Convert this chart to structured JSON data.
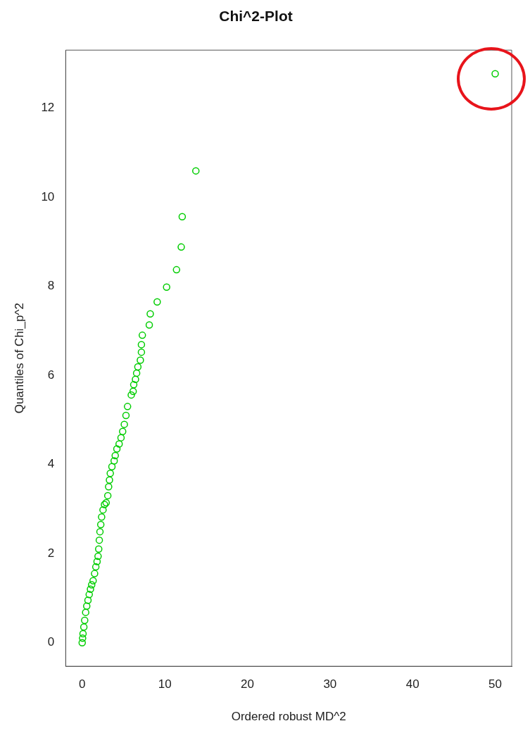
{
  "chart_data": {
    "type": "scatter",
    "title": "Chi^2-Plot",
    "xlabel": "Ordered robust MD^2",
    "ylabel": "Quantiles of Chi_p^2",
    "xlim": [
      -2,
      52
    ],
    "ylim": [
      -0.53,
      13.3
    ],
    "xticks": [
      0,
      10,
      20,
      30,
      40,
      50
    ],
    "yticks": [
      0,
      2,
      4,
      6,
      8,
      10,
      12
    ],
    "grid": false,
    "legend": false,
    "marker": "circle",
    "series": [
      {
        "color": "#00cd00",
        "x": [
          0,
          0.05,
          0.1,
          0.2,
          0.3,
          0.42,
          0.55,
          0.7,
          0.85,
          1.0,
          1.15,
          1.32,
          1.5,
          1.65,
          1.8,
          1.92,
          2.0,
          2.07,
          2.15,
          2.25,
          2.35,
          2.52,
          2.7,
          2.9,
          3.1,
          3.2,
          3.3,
          3.4,
          3.6,
          3.87,
          4.0,
          4.2,
          4.47,
          4.7,
          4.9,
          5.1,
          5.3,
          5.49,
          5.94,
          6.17,
          6.24,
          6.45,
          6.59,
          6.74,
          7.04,
          7.17,
          7.17,
          7.28,
          8.12,
          8.24,
          9.08,
          10.22,
          11.42,
          11.99,
          12.11,
          13.76,
          50.0
        ],
        "values": [
          0,
          0.1,
          0.2,
          0.35,
          0.5,
          0.68,
          0.82,
          0.95,
          1.08,
          1.2,
          1.3,
          1.39,
          1.55,
          1.7,
          1.82,
          1.94,
          2.1,
          2.3,
          2.49,
          2.65,
          2.82,
          2.98,
          3.1,
          3.14,
          3.3,
          3.5,
          3.65,
          3.8,
          3.95,
          4.08,
          4.2,
          4.35,
          4.46,
          4.6,
          4.74,
          4.9,
          5.1,
          5.3,
          5.56,
          5.64,
          5.79,
          5.91,
          6.05,
          6.19,
          6.34,
          6.52,
          6.69,
          6.9,
          7.13,
          7.38,
          7.65,
          7.98,
          8.37,
          8.88,
          9.56,
          10.59,
          12.77
        ]
      }
    ]
  }
}
